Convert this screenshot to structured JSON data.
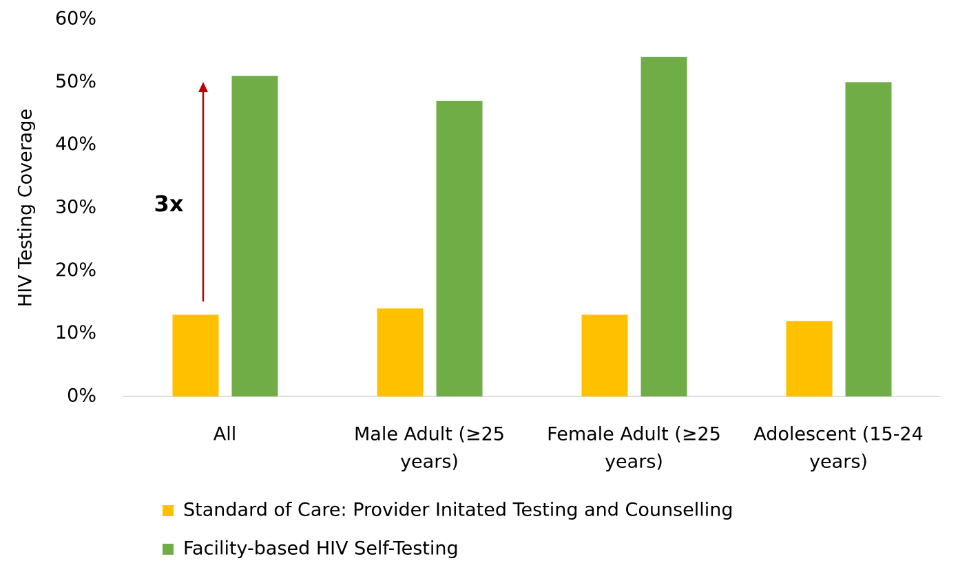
{
  "chart_data": {
    "type": "bar",
    "y_label": "HIV Testing Coverage",
    "categories": [
      [
        "All"
      ],
      [
        "Male Adult (≥25",
        "years)"
      ],
      [
        "Female Adult (≥25",
        "years)"
      ],
      [
        "Adolescent (15-24",
        "years)"
      ]
    ],
    "series": [
      {
        "name": "Standard of Care: Provider Initated Testing and Counselling",
        "color": "#ffc000",
        "values": [
          13,
          14,
          13,
          12
        ]
      },
      {
        "name": "Facility-based HIV Self-Testing",
        "color": "#70ad47",
        "values": [
          51,
          47,
          54,
          50
        ]
      }
    ],
    "ylim": [
      0,
      60
    ],
    "yticks": [
      {
        "value": 0,
        "label": "0%"
      },
      {
        "value": 10,
        "label": "10%"
      },
      {
        "value": 20,
        "label": "20%"
      },
      {
        "value": 30,
        "label": "30%"
      },
      {
        "value": 40,
        "label": "40%"
      },
      {
        "value": 50,
        "label": "50%"
      },
      {
        "value": 60,
        "label": "60%"
      }
    ],
    "grid": false,
    "annotation": {
      "text": "3x",
      "color": "#c00000"
    }
  }
}
